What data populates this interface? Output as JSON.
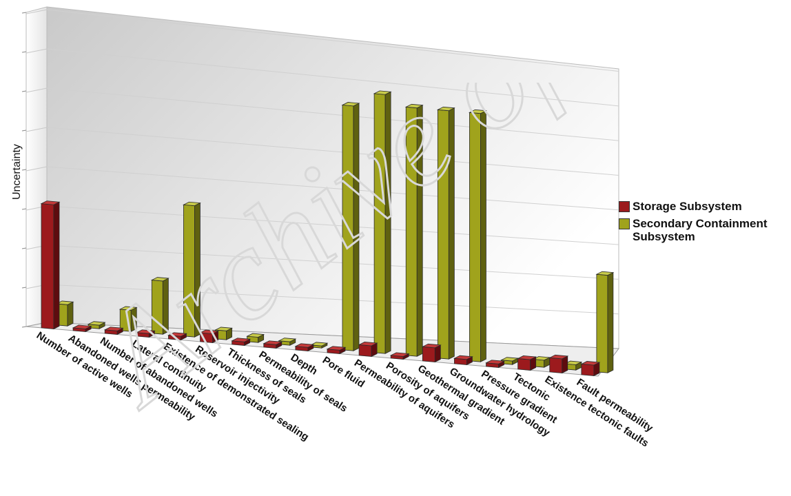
{
  "colors": {
    "storage_front": "#9c1a1d",
    "storage_side": "#5e0c0f",
    "storage_top": "#c43a3a",
    "containment_front": "#a0a31c",
    "containment_side": "#5f6110",
    "containment_top": "#c8cb4a"
  },
  "watermark_text": "Archive of SID",
  "legend": {
    "items": [
      {
        "label": "Storage Subsystem",
        "color": "#9c1a1d"
      },
      {
        "label": "Secondary Containment Subsystem",
        "color": "#a0a31c"
      }
    ]
  },
  "chart_data": {
    "type": "bar",
    "style": "3d-clustered",
    "title": "",
    "xlabel": "",
    "ylabel": "Uncertainty",
    "y_tick_labels_shown": false,
    "grid": true,
    "legend_position": "right",
    "ylim": [
      0,
      8
    ],
    "categories": [
      "Number of active wells",
      "Abandoned wells permeability",
      "Number of abandoned wells",
      "Lateral continuity",
      "Existence of demonstrated sealing",
      "Reservoir injectivity",
      "Thickness of seals",
      "Permeability of seals",
      "Depth",
      "Pore fluid",
      "Permeability of aquifers",
      "Porosity of aquifers",
      "Geothermal gradient",
      "Groundwater hydrology",
      "Pressure gradient",
      "Tectonic",
      "Existence tectonic faults",
      "Fault permeability"
    ],
    "series": [
      {
        "name": "Storage Subsystem",
        "values": [
          3.5,
          0.05,
          0.1,
          0.1,
          0.1,
          0.25,
          0.1,
          0.1,
          0.1,
          0.1,
          0.3,
          0.05,
          0.4,
          0.15,
          0.1,
          0.3,
          0.4,
          0.3
        ]
      },
      {
        "name": "Secondary Containment Subsystem",
        "values": [
          0.6,
          0.1,
          0.6,
          1.5,
          3.7,
          0.25,
          0.15,
          0.1,
          0.0,
          6.9,
          7.3,
          7.0,
          7.0,
          7.0,
          0.1,
          0.2,
          0.15,
          2.75
        ]
      }
    ]
  }
}
